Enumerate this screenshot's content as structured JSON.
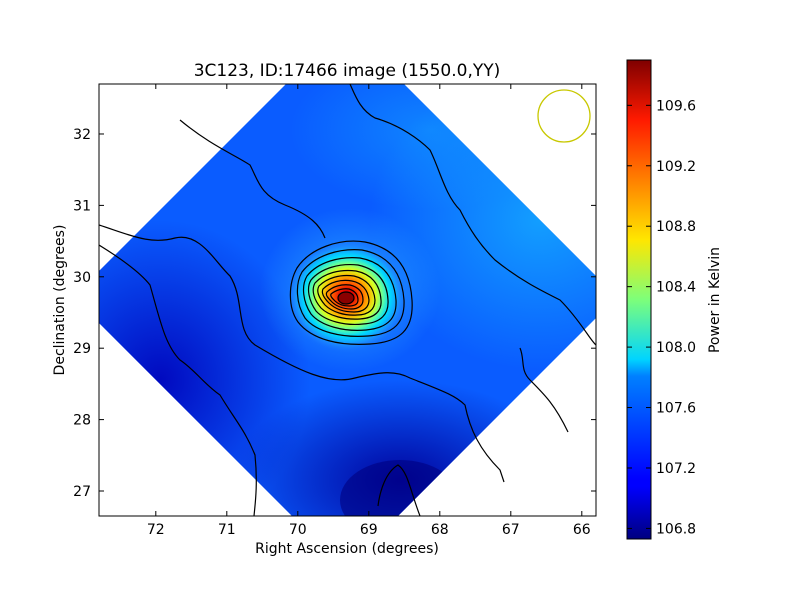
{
  "chart_data": {
    "type": "heatmap",
    "title": "3C123, ID:17466 image (1550.0,YY)",
    "xlabel": "Right Ascension (degrees)",
    "ylabel": "Declination (degrees)",
    "xlim": [
      72.8,
      65.8
    ],
    "ylim": [
      26.65,
      32.7
    ],
    "x_ticks": [
      72,
      71,
      70,
      69,
      68,
      67,
      66
    ],
    "x_tick_labels": [
      "72",
      "71",
      "70",
      "69",
      "68",
      "67",
      "66"
    ],
    "y_ticks": [
      27,
      28,
      29,
      30,
      31,
      32
    ],
    "y_tick_labels": [
      "27",
      "28",
      "29",
      "30",
      "31",
      "32"
    ],
    "colorbar": {
      "label": "Power in Kelvin",
      "range": [
        106.73,
        109.9
      ],
      "ticks": [
        106.8,
        107.2,
        107.6,
        108.0,
        108.4,
        108.8,
        109.2,
        109.6
      ],
      "tick_labels": [
        "106.8",
        "107.2",
        "107.6",
        "108.0",
        "108.4",
        "108.8",
        "109.2",
        "109.6"
      ],
      "colormap": "jet"
    },
    "peak": {
      "ra": 69.3,
      "dec": 29.7,
      "value": 109.85
    },
    "background_range": [
      106.8,
      107.6
    ],
    "footprint": {
      "center_ra": 69.3,
      "center_dec": 29.7,
      "shape": "diamond"
    },
    "beam_circle": {
      "ra": 66.25,
      "dec": 32.25,
      "color": "#c8c800"
    },
    "contour_color": "#000000"
  }
}
